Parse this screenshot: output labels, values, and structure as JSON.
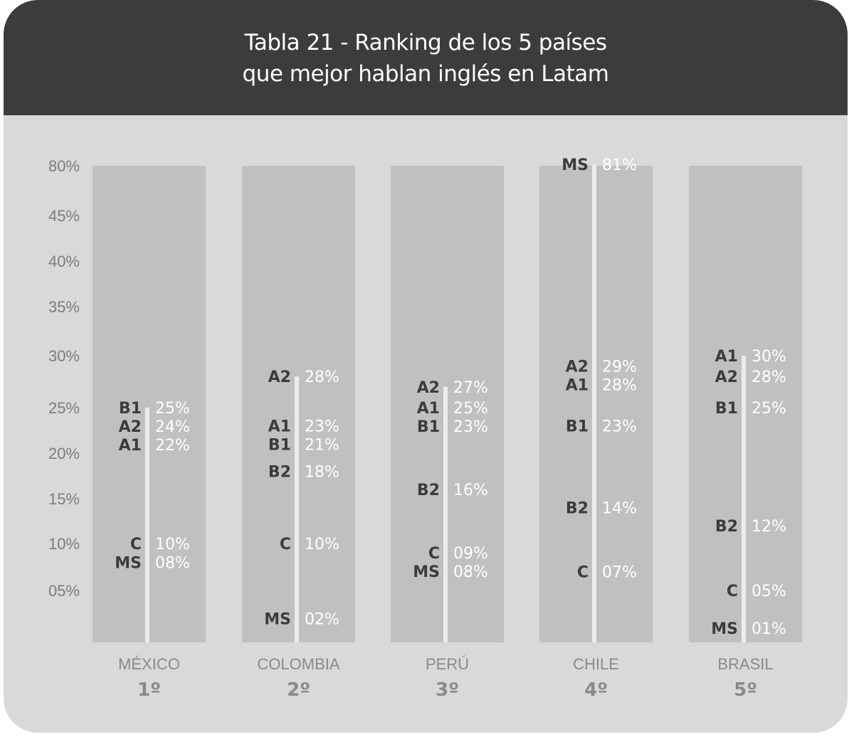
{
  "title": {
    "line1": "Tabla 21 - Ranking de los 5 países",
    "line2": "que mejor hablan inglés en Latam"
  },
  "colors": {
    "header": "#3c3c3b",
    "background": "#d9d9d9",
    "column": "#c0c0bf",
    "stem": "#ececec",
    "level_text": "#3c3c3b",
    "value_text": "#ffffff",
    "axis_text": "#7d7d7d"
  },
  "chart_data": {
    "type": "table",
    "y_ticks": [
      "80%",
      "45%",
      "40%",
      "35%",
      "30%",
      "25%",
      "20%",
      "15%",
      "10%",
      "05%"
    ],
    "countries": [
      {
        "name": "MÉXICO",
        "rank": "1º",
        "points": [
          {
            "level": "B1",
            "label": "25%",
            "value": 25
          },
          {
            "level": "A2",
            "label": "24%",
            "value": 24
          },
          {
            "level": "A1",
            "label": "22%",
            "value": 22
          },
          {
            "level": "C",
            "label": "10%",
            "value": 10
          },
          {
            "level": "MS",
            "label": "08%",
            "value": 8
          }
        ]
      },
      {
        "name": "COLOMBIA",
        "rank": "2º",
        "points": [
          {
            "level": "A2",
            "label": "28%",
            "value": 28
          },
          {
            "level": "A1",
            "label": "23%",
            "value": 23
          },
          {
            "level": "B1",
            "label": "21%",
            "value": 21
          },
          {
            "level": "B2",
            "label": "18%",
            "value": 18
          },
          {
            "level": "C",
            "label": "10%",
            "value": 10
          },
          {
            "level": "MS",
            "label": "02%",
            "value": 2
          }
        ]
      },
      {
        "name": "PERÚ",
        "rank": "3º",
        "points": [
          {
            "level": "A2",
            "label": "27%",
            "value": 27
          },
          {
            "level": "A1",
            "label": "25%",
            "value": 25
          },
          {
            "level": "B1",
            "label": "23%",
            "value": 23
          },
          {
            "level": "B2",
            "label": "16%",
            "value": 16
          },
          {
            "level": "C",
            "label": "09%",
            "value": 9
          },
          {
            "level": "MS",
            "label": "08%",
            "value": 8
          }
        ]
      },
      {
        "name": "CHILE",
        "rank": "4º",
        "points": [
          {
            "level": "MS",
            "label": "81%",
            "value": 81
          },
          {
            "level": "A2",
            "label": "29%",
            "value": 29
          },
          {
            "level": "A1",
            "label": "28%",
            "value": 28
          },
          {
            "level": "B1",
            "label": "23%",
            "value": 23
          },
          {
            "level": "B2",
            "label": "14%",
            "value": 14
          },
          {
            "level": "C",
            "label": "07%",
            "value": 7
          }
        ]
      },
      {
        "name": "BRASIL",
        "rank": "5º",
        "points": [
          {
            "level": "A1",
            "label": "30%",
            "value": 30
          },
          {
            "level": "A2",
            "label": "28%",
            "value": 28
          },
          {
            "level": "B1",
            "label": "25%",
            "value": 25
          },
          {
            "level": "B2",
            "label": "12%",
            "value": 12
          },
          {
            "level": "C",
            "label": "05%",
            "value": 5
          },
          {
            "level": "MS",
            "label": "01%",
            "value": 1
          }
        ]
      }
    ]
  }
}
